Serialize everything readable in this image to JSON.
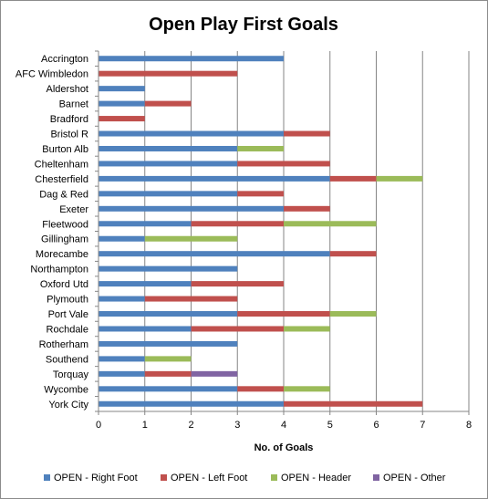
{
  "chart_data": {
    "type": "bar",
    "orientation": "horizontal",
    "stacked": true,
    "title": "Open Play First Goals",
    "xlabel": "No. of Goals",
    "ylabel": "",
    "xlim": [
      0,
      8
    ],
    "xticks": [
      "0",
      "1",
      "2",
      "3",
      "4",
      "5",
      "6",
      "7",
      "8"
    ],
    "grid": "vertical major gridlines",
    "legend_position": "bottom",
    "categories": [
      "Accrington",
      "AFC Wimbledon",
      "Aldershot",
      "Barnet",
      "Bradford",
      "Bristol R",
      "Burton Alb",
      "Cheltenham",
      "Chesterfield",
      "Dag & Red",
      "Exeter",
      "Fleetwood",
      "Gillingham",
      "Morecambe",
      "Northampton",
      "Oxford Utd",
      "Plymouth",
      "Port Vale",
      "Rochdale",
      "Rotherham",
      "Southend",
      "Torquay",
      "Wycombe",
      "York City"
    ],
    "series": [
      {
        "name": "OPEN - Right Foot",
        "color": "#4f81bd",
        "values": [
          4,
          0,
          1,
          1,
          0,
          4,
          3,
          3,
          5,
          3,
          4,
          2,
          1,
          5,
          3,
          2,
          1,
          3,
          2,
          3,
          1,
          1,
          3,
          4
        ]
      },
      {
        "name": "OPEN - Left Foot",
        "color": "#c0504d",
        "values": [
          0,
          3,
          0,
          1,
          1,
          1,
          0,
          2,
          1,
          1,
          1,
          2,
          0,
          1,
          0,
          2,
          2,
          2,
          2,
          0,
          0,
          1,
          1,
          3
        ]
      },
      {
        "name": "OPEN - Header",
        "color": "#9bbb59",
        "values": [
          0,
          0,
          0,
          0,
          0,
          0,
          1,
          0,
          1,
          0,
          0,
          2,
          2,
          0,
          0,
          0,
          0,
          1,
          1,
          0,
          1,
          0,
          1,
          0
        ]
      },
      {
        "name": "OPEN - Other",
        "color": "#8064a2",
        "values": [
          0,
          0,
          0,
          0,
          0,
          0,
          0,
          0,
          0,
          0,
          0,
          0,
          0,
          0,
          0,
          0,
          0,
          0,
          0,
          0,
          0,
          1,
          0,
          0
        ]
      }
    ]
  }
}
